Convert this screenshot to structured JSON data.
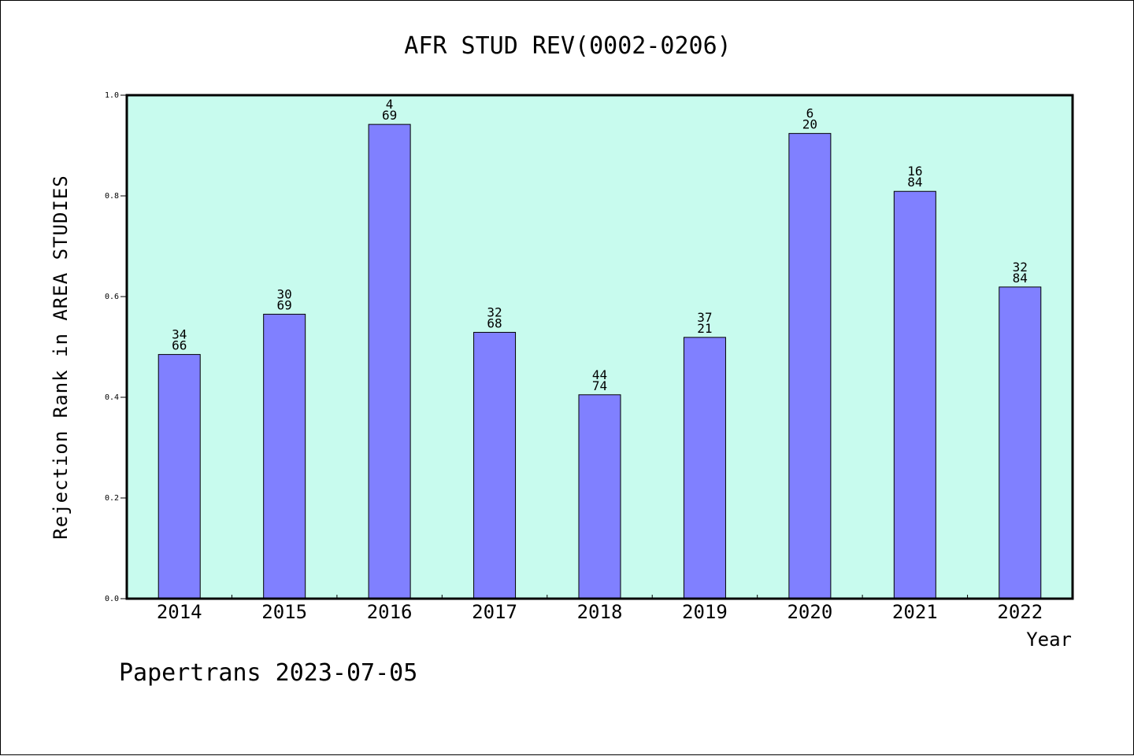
{
  "chart_data": {
    "type": "bar",
    "title": "AFR STUD REV(0002-0206)",
    "xlabel": "Year",
    "ylabel": "Rejection Rank in AREA STUDIES",
    "categories": [
      "2014",
      "2015",
      "2016",
      "2017",
      "2018",
      "2019",
      "2020",
      "2021",
      "2022"
    ],
    "values": [
      0.485,
      0.565,
      0.942,
      0.529,
      0.405,
      0.519,
      0.924,
      0.809,
      0.619
    ],
    "annotations": [
      [
        "34",
        "66"
      ],
      [
        "30",
        "69"
      ],
      [
        "4",
        "69"
      ],
      [
        "32",
        "68"
      ],
      [
        "44",
        "74"
      ],
      [
        "37",
        "21"
      ],
      [
        "6",
        "20"
      ],
      [
        "16",
        "84"
      ],
      [
        "32",
        "84"
      ]
    ],
    "ylim": [
      0,
      1
    ],
    "yticks": [
      "0.0",
      "0.2",
      "0.4",
      "0.6",
      "0.8",
      "1.0"
    ],
    "grid": false,
    "colors": {
      "plot_bg": "#c8fbee",
      "bar": "#8080ff",
      "bar_edge": "#000000"
    }
  },
  "footer": "Papertrans 2023-07-05"
}
